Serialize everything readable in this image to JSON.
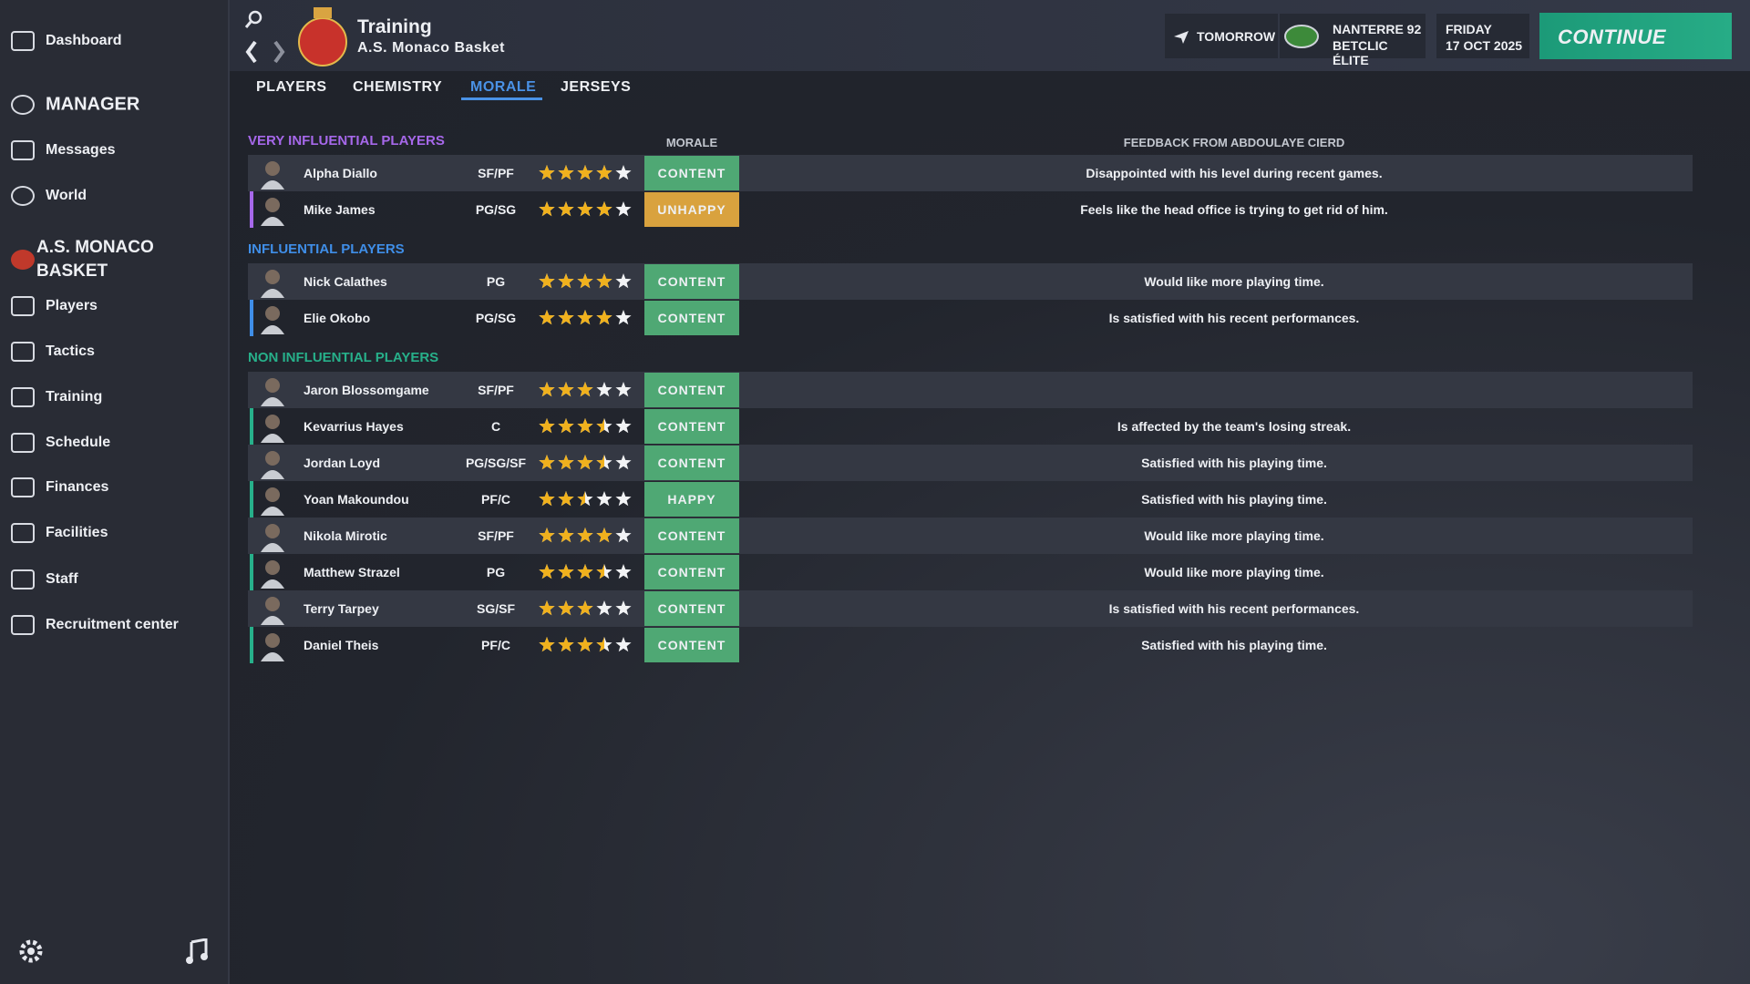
{
  "sidebar": {
    "items": [
      "Dashboard",
      "MANAGER",
      "Messages",
      "World",
      "A.S. MONACO BASKET",
      "Players",
      "Tactics",
      "Training",
      "Schedule",
      "Finances",
      "Facilities",
      "Staff",
      "Recruitment center"
    ]
  },
  "header": {
    "title": "Training",
    "subtitle": "A.S. Monaco Basket",
    "travel": "TOMORROW",
    "opponent": "NANTERRE 92",
    "league": "BETCLIC ÉLITE",
    "weekday": "FRIDAY",
    "date": "17 OCT 2025",
    "continue": "CONTINUE"
  },
  "tabs": [
    "PLAYERS",
    "CHEMISTRY",
    "MORALE",
    "JERSEYS"
  ],
  "table": {
    "morale_header": "MORALE",
    "feedback_header": "FEEDBACK FROM ABDOULAYE CIERD",
    "star_max": 5,
    "sections": [
      {
        "title": "VERY INFLUENTIAL PLAYERS",
        "color": "#a668ea",
        "players": [
          {
            "name": "Alpha Diallo",
            "position": "SF/PF",
            "rating": 4,
            "morale": "CONTENT",
            "morale_color": "#4fa874",
            "feedback": "Disappointed with his level during recent games."
          },
          {
            "name": "Mike James",
            "position": "PG/SG",
            "rating": 4,
            "morale": "UNHAPPY",
            "morale_color": "#d9a23e",
            "feedback": "Feels like the head office is trying to get rid of him."
          }
        ]
      },
      {
        "title": "INFLUENTIAL PLAYERS",
        "color": "#3f8ee8",
        "players": [
          {
            "name": "Nick Calathes",
            "position": "PG",
            "rating": 4,
            "morale": "CONTENT",
            "morale_color": "#4fa874",
            "feedback": "Would like more playing time."
          },
          {
            "name": "Elie Okobo",
            "position": "PG/SG",
            "rating": 4,
            "morale": "CONTENT",
            "morale_color": "#4fa874",
            "feedback": "Is satisfied with his recent performances."
          }
        ]
      },
      {
        "title": "NON INFLUENTIAL PLAYERS",
        "color": "#27b08a",
        "players": [
          {
            "name": "Jaron Blossomgame",
            "position": "SF/PF",
            "rating": 3,
            "morale": "CONTENT",
            "morale_color": "#4fa874"
          },
          {
            "name": "Kevarrius Hayes",
            "position": "C",
            "rating": 3.5,
            "morale": "CONTENT",
            "morale_color": "#4fa874",
            "feedback": "Is affected by the team's losing streak."
          },
          {
            "name": "Jordan Loyd",
            "position": "PG/SG/SF",
            "rating": 3.5,
            "morale": "CONTENT",
            "morale_color": "#4fa874",
            "feedback": "Satisfied with his playing time."
          },
          {
            "name": "Yoan Makoundou",
            "position": "PF/C",
            "rating": 2.5,
            "morale": "HAPPY",
            "morale_color": "#4fa874",
            "feedback": "Satisfied with his playing time."
          },
          {
            "name": "Nikola Mirotic",
            "position": "SF/PF",
            "rating": 4,
            "morale": "CONTENT",
            "morale_color": "#4fa874",
            "feedback": "Would like more playing time."
          },
          {
            "name": "Matthew Strazel",
            "position": "PG",
            "rating": 3.5,
            "morale": "CONTENT",
            "morale_color": "#4fa874",
            "feedback": "Would like more playing time."
          },
          {
            "name": "Terry Tarpey",
            "position": "SG/SF",
            "rating": 3,
            "morale": "CONTENT",
            "morale_color": "#4fa874",
            "feedback": "Is satisfied with his recent performances."
          },
          {
            "name": "Daniel Theis",
            "position": "PF/C",
            "rating": 3.5,
            "morale": "CONTENT",
            "morale_color": "#4fa874",
            "feedback": "Satisfied with his playing time."
          }
        ]
      }
    ]
  }
}
